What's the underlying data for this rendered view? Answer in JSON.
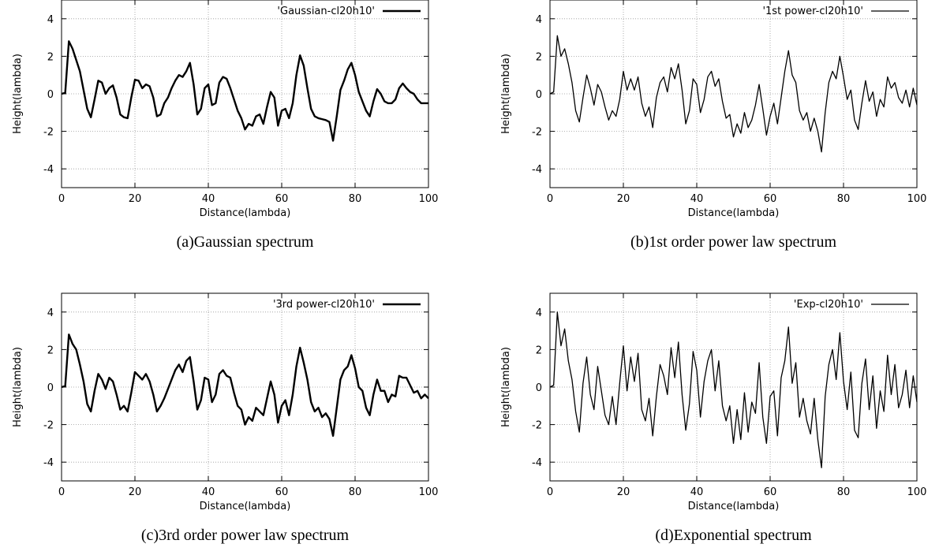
{
  "chart_data": [
    {
      "type": "line",
      "caption": "(a)Gaussian spectrum",
      "xlabel": "Distance(lambda)",
      "ylabel": "Height(lambda)",
      "xlim": [
        0,
        100
      ],
      "ylim": [
        -5,
        5
      ],
      "xticks": [
        0,
        20,
        40,
        60,
        80,
        100
      ],
      "yticks": [
        -4,
        -2,
        0,
        2,
        4
      ],
      "grid": true,
      "legend_position": "top-right",
      "series": [
        {
          "name": "'Gaussian-cl20h10'",
          "color": "#000000",
          "x": [
            0,
            1,
            2,
            3,
            4,
            5,
            6,
            7,
            8,
            9,
            10,
            11,
            12,
            13,
            14,
            15,
            16,
            17,
            18,
            19,
            20,
            21,
            22,
            23,
            24,
            25,
            26,
            27,
            28,
            29,
            30,
            31,
            32,
            33,
            34,
            35,
            36,
            37,
            38,
            39,
            40,
            41,
            42,
            43,
            44,
            45,
            46,
            47,
            48,
            49,
            50,
            51,
            52,
            53,
            54,
            55,
            56,
            57,
            58,
            59,
            60,
            61,
            62,
            63,
            64,
            65,
            66,
            67,
            68,
            69,
            70,
            71,
            72,
            73,
            74,
            75,
            76,
            77,
            78,
            79,
            80,
            81,
            82,
            83,
            84,
            85,
            86,
            87,
            88,
            89,
            90,
            91,
            92,
            93,
            94,
            95,
            96,
            97,
            98,
            99,
            100
          ],
          "values": [
            0,
            0.05,
            2.8,
            2.4,
            1.8,
            1.2,
            0.2,
            -0.8,
            -1.25,
            -0.3,
            0.7,
            0.6,
            0.0,
            0.3,
            0.45,
            -0.2,
            -1.1,
            -1.25,
            -1.3,
            -0.2,
            0.75,
            0.7,
            0.3,
            0.5,
            0.4,
            -0.2,
            -1.2,
            -1.1,
            -0.5,
            -0.2,
            0.3,
            0.7,
            1.0,
            0.9,
            1.2,
            1.65,
            0.5,
            -1.1,
            -0.8,
            0.3,
            0.5,
            -0.6,
            -0.5,
            0.6,
            0.9,
            0.8,
            0.3,
            -0.3,
            -0.9,
            -1.3,
            -1.9,
            -1.6,
            -1.7,
            -1.2,
            -1.1,
            -1.6,
            -0.7,
            0.1,
            -0.2,
            -1.7,
            -0.9,
            -0.8,
            -1.3,
            -0.5,
            1.0,
            2.05,
            1.5,
            0.3,
            -0.8,
            -1.2,
            -1.3,
            -1.35,
            -1.4,
            -1.5,
            -2.5,
            -1.2,
            0.2,
            0.7,
            1.3,
            1.65,
            1.0,
            0.1,
            -0.4,
            -0.9,
            -1.2,
            -0.4,
            0.25,
            0.0,
            -0.4,
            -0.5,
            -0.5,
            -0.3,
            0.3,
            0.55,
            0.3,
            0.1,
            0.0,
            -0.3,
            -0.5,
            -0.5,
            -0.5
          ]
        }
      ]
    },
    {
      "type": "line",
      "caption": "(b)1st order power law spectrum",
      "xlabel": "Distance(lambda)",
      "ylabel": "Height(lambda)",
      "xlim": [
        0,
        100
      ],
      "ylim": [
        -5,
        5
      ],
      "xticks": [
        0,
        20,
        40,
        60,
        80,
        100
      ],
      "yticks": [
        -4,
        -2,
        0,
        2,
        4
      ],
      "grid": true,
      "legend_position": "top-right",
      "series": [
        {
          "name": "'1st power-cl20h10'",
          "color": "#000000",
          "x": [
            0,
            1,
            2,
            3,
            4,
            5,
            6,
            7,
            8,
            9,
            10,
            11,
            12,
            13,
            14,
            15,
            16,
            17,
            18,
            19,
            20,
            21,
            22,
            23,
            24,
            25,
            26,
            27,
            28,
            29,
            30,
            31,
            32,
            33,
            34,
            35,
            36,
            37,
            38,
            39,
            40,
            41,
            42,
            43,
            44,
            45,
            46,
            47,
            48,
            49,
            50,
            51,
            52,
            53,
            54,
            55,
            56,
            57,
            58,
            59,
            60,
            61,
            62,
            63,
            64,
            65,
            66,
            67,
            68,
            69,
            70,
            71,
            72,
            73,
            74,
            75,
            76,
            77,
            78,
            79,
            80,
            81,
            82,
            83,
            84,
            85,
            86,
            87,
            88,
            89,
            90,
            91,
            92,
            93,
            94,
            95,
            96,
            97,
            98,
            99,
            100
          ],
          "values": [
            0,
            0.1,
            3.1,
            2.0,
            2.4,
            1.6,
            0.6,
            -0.9,
            -1.5,
            -0.2,
            1.0,
            0.3,
            -0.6,
            0.5,
            0.1,
            -0.7,
            -1.4,
            -0.9,
            -1.2,
            -0.3,
            1.2,
            0.2,
            0.8,
            0.2,
            0.9,
            -0.5,
            -1.2,
            -0.7,
            -1.8,
            -0.2,
            0.6,
            0.9,
            0.1,
            1.4,
            0.8,
            1.6,
            0.2,
            -1.6,
            -0.9,
            0.8,
            0.5,
            -1.0,
            -0.3,
            0.9,
            1.2,
            0.4,
            0.8,
            -0.4,
            -1.3,
            -1.1,
            -2.3,
            -1.6,
            -2.1,
            -1.0,
            -1.8,
            -1.4,
            -0.6,
            0.5,
            -0.8,
            -2.2,
            -1.2,
            -0.5,
            -1.6,
            -0.2,
            1.2,
            2.3,
            1.0,
            0.6,
            -0.9,
            -1.4,
            -1.0,
            -2.0,
            -1.3,
            -2.0,
            -3.1,
            -1.0,
            0.6,
            1.2,
            0.8,
            2.0,
            0.9,
            -0.3,
            0.2,
            -1.4,
            -1.9,
            -0.5,
            0.7,
            -0.4,
            0.1,
            -1.2,
            -0.3,
            -0.7,
            0.9,
            0.3,
            0.6,
            -0.2,
            -0.5,
            0.2,
            -0.7,
            0.3,
            -0.6
          ]
        }
      ]
    },
    {
      "type": "line",
      "caption": "(c)3rd order power law spectrum",
      "xlabel": "Distance(lambda)",
      "ylabel": "Height(lambda)",
      "xlim": [
        0,
        100
      ],
      "ylim": [
        -5,
        5
      ],
      "xticks": [
        0,
        20,
        40,
        60,
        80,
        100
      ],
      "yticks": [
        -4,
        -2,
        0,
        2,
        4
      ],
      "grid": true,
      "legend_position": "top-right",
      "series": [
        {
          "name": "'3rd power-cl20h10'",
          "color": "#000000",
          "x": [
            0,
            1,
            2,
            3,
            4,
            5,
            6,
            7,
            8,
            9,
            10,
            11,
            12,
            13,
            14,
            15,
            16,
            17,
            18,
            19,
            20,
            21,
            22,
            23,
            24,
            25,
            26,
            27,
            28,
            29,
            30,
            31,
            32,
            33,
            34,
            35,
            36,
            37,
            38,
            39,
            40,
            41,
            42,
            43,
            44,
            45,
            46,
            47,
            48,
            49,
            50,
            51,
            52,
            53,
            54,
            55,
            56,
            57,
            58,
            59,
            60,
            61,
            62,
            63,
            64,
            65,
            66,
            67,
            68,
            69,
            70,
            71,
            72,
            73,
            74,
            75,
            76,
            77,
            78,
            79,
            80,
            81,
            82,
            83,
            84,
            85,
            86,
            87,
            88,
            89,
            90,
            91,
            92,
            93,
            94,
            95,
            96,
            97,
            98,
            99,
            100
          ],
          "values": [
            0,
            0.05,
            2.8,
            2.3,
            2.0,
            1.2,
            0.3,
            -0.9,
            -1.3,
            -0.2,
            0.7,
            0.4,
            -0.1,
            0.5,
            0.3,
            -0.4,
            -1.2,
            -1.0,
            -1.3,
            -0.3,
            0.8,
            0.6,
            0.4,
            0.7,
            0.3,
            -0.4,
            -1.3,
            -1.0,
            -0.6,
            -0.1,
            0.4,
            0.9,
            1.2,
            0.8,
            1.4,
            1.6,
            0.3,
            -1.2,
            -0.7,
            0.5,
            0.4,
            -0.8,
            -0.4,
            0.7,
            0.9,
            0.6,
            0.5,
            -0.3,
            -1.0,
            -1.2,
            -2.0,
            -1.6,
            -1.8,
            -1.1,
            -1.3,
            -1.5,
            -0.6,
            0.3,
            -0.4,
            -1.9,
            -1.0,
            -0.7,
            -1.5,
            -0.4,
            1.1,
            2.1,
            1.3,
            0.4,
            -0.8,
            -1.3,
            -1.1,
            -1.6,
            -1.4,
            -1.7,
            -2.6,
            -1.1,
            0.4,
            0.9,
            1.1,
            1.7,
            1.0,
            0.0,
            -0.2,
            -1.1,
            -1.5,
            -0.4,
            0.4,
            -0.2,
            -0.2,
            -0.8,
            -0.4,
            -0.5,
            0.6,
            0.5,
            0.5,
            0.1,
            -0.3,
            -0.2,
            -0.6,
            -0.4,
            -0.6
          ]
        }
      ]
    },
    {
      "type": "line",
      "caption": "(d)Exponential spectrum",
      "xlabel": "Distance(lambda)",
      "ylabel": "Height(lambda)",
      "xlim": [
        0,
        100
      ],
      "ylim": [
        -5,
        5
      ],
      "xticks": [
        0,
        20,
        40,
        60,
        80,
        100
      ],
      "yticks": [
        -4,
        -2,
        0,
        2,
        4
      ],
      "grid": true,
      "legend_position": "top-right",
      "series": [
        {
          "name": "'Exp-cl20h10'",
          "color": "#000000",
          "x": [
            0,
            1,
            2,
            3,
            4,
            5,
            6,
            7,
            8,
            9,
            10,
            11,
            12,
            13,
            14,
            15,
            16,
            17,
            18,
            19,
            20,
            21,
            22,
            23,
            24,
            25,
            26,
            27,
            28,
            29,
            30,
            31,
            32,
            33,
            34,
            35,
            36,
            37,
            38,
            39,
            40,
            41,
            42,
            43,
            44,
            45,
            46,
            47,
            48,
            49,
            50,
            51,
            52,
            53,
            54,
            55,
            56,
            57,
            58,
            59,
            60,
            61,
            62,
            63,
            64,
            65,
            66,
            67,
            68,
            69,
            70,
            71,
            72,
            73,
            74,
            75,
            76,
            77,
            78,
            79,
            80,
            81,
            82,
            83,
            84,
            85,
            86,
            87,
            88,
            89,
            90,
            91,
            92,
            93,
            94,
            95,
            96,
            97,
            98,
            99,
            100
          ],
          "values": [
            0,
            0.1,
            4.0,
            2.2,
            3.1,
            1.4,
            0.4,
            -1.3,
            -2.4,
            0.2,
            1.6,
            -0.4,
            -1.2,
            1.1,
            -0.2,
            -1.5,
            -2.0,
            -0.5,
            -2.0,
            0.2,
            2.2,
            -0.2,
            1.6,
            0.3,
            1.8,
            -1.2,
            -1.8,
            -0.6,
            -2.6,
            -0.5,
            1.2,
            0.6,
            -0.4,
            2.1,
            0.5,
            2.4,
            -0.4,
            -2.3,
            -0.9,
            1.9,
            0.9,
            -1.6,
            0.3,
            1.4,
            2.0,
            -0.2,
            1.4,
            -1.0,
            -1.8,
            -1.0,
            -3.0,
            -1.2,
            -2.8,
            -0.3,
            -2.4,
            -0.8,
            -1.4,
            1.3,
            -1.6,
            -3.0,
            -0.5,
            -0.2,
            -2.6,
            0.5,
            1.4,
            3.2,
            0.2,
            1.3,
            -1.6,
            -0.6,
            -1.8,
            -2.5,
            -0.6,
            -2.8,
            -4.3,
            -0.5,
            1.2,
            2.0,
            0.4,
            2.9,
            0.3,
            -1.2,
            0.8,
            -2.3,
            -2.7,
            0.2,
            1.5,
            -1.2,
            0.6,
            -2.2,
            -0.2,
            -1.3,
            1.7,
            -0.4,
            1.2,
            -1.1,
            -0.4,
            0.9,
            -1.1,
            0.6,
            -0.8
          ]
        }
      ]
    }
  ]
}
